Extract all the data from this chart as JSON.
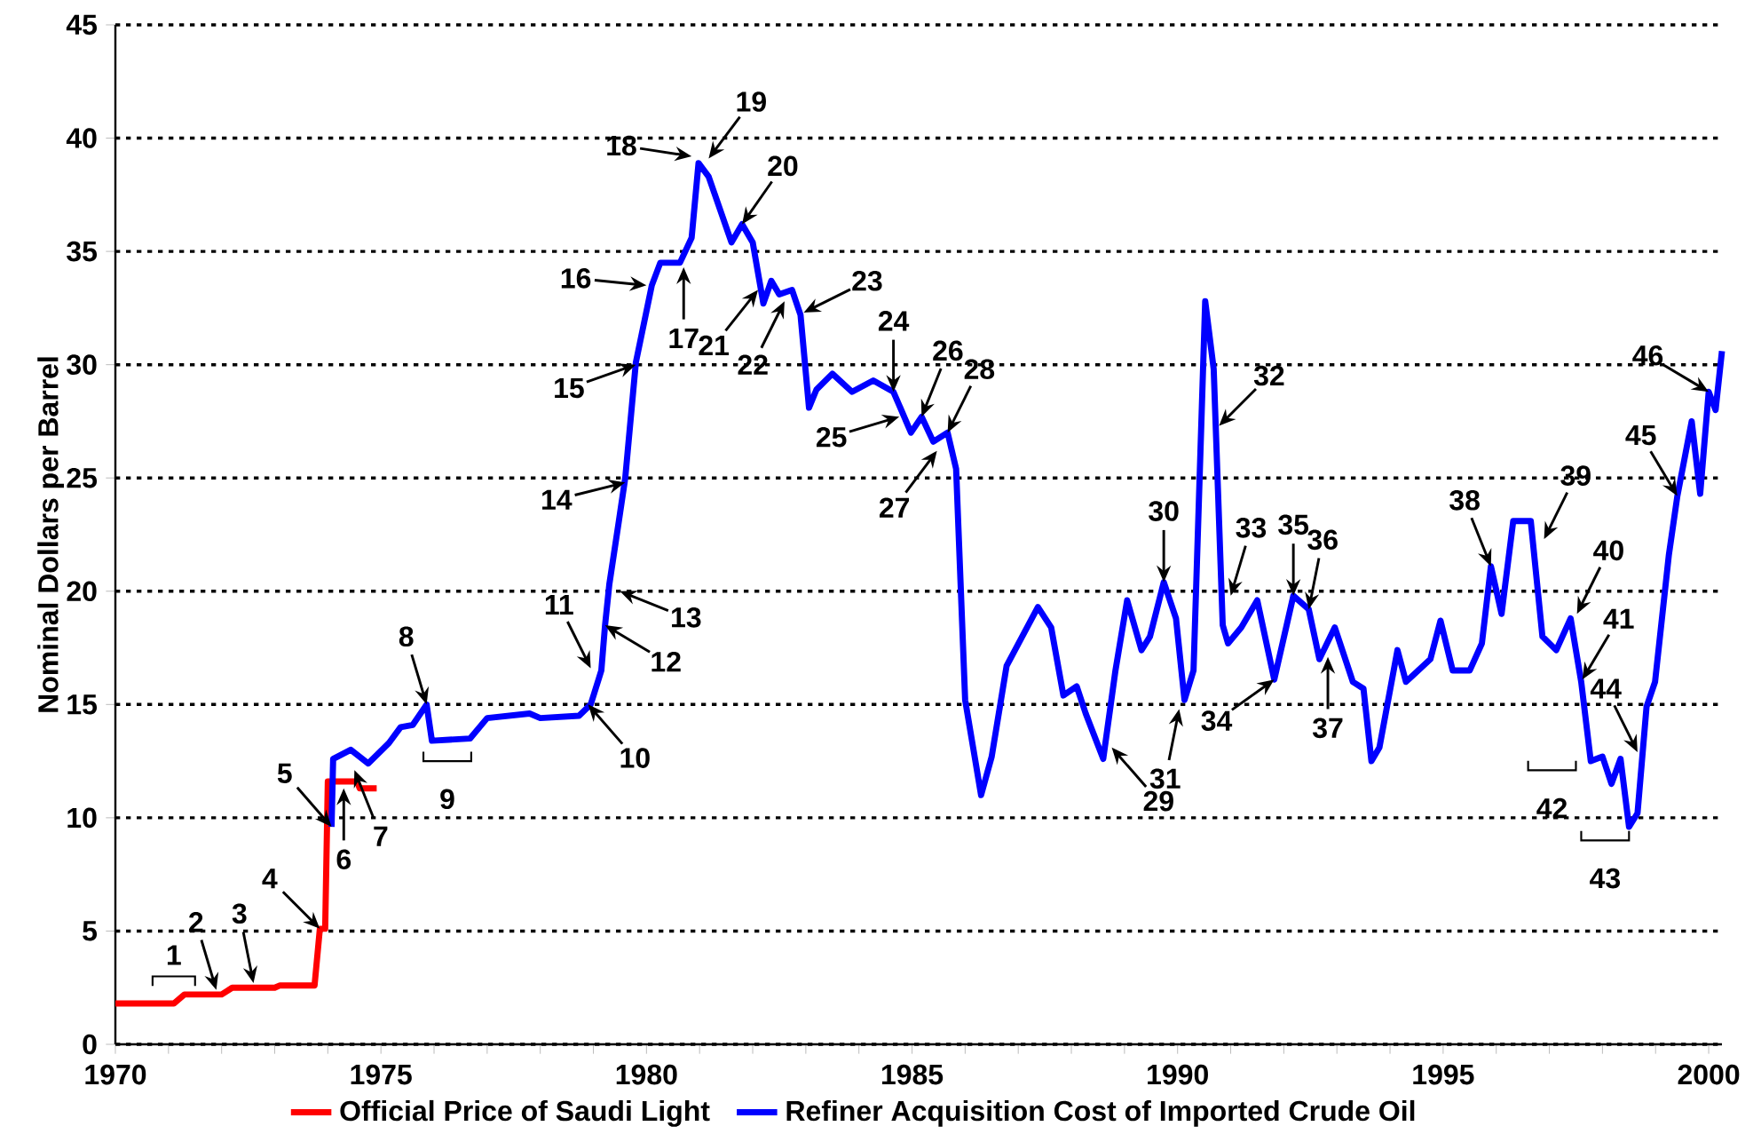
{
  "chart_data": {
    "type": "line",
    "ylabel": "Nominal Dollars per Barrel",
    "xlim": [
      1970,
      2000.25
    ],
    "ylim": [
      0,
      45
    ],
    "xticks": [
      1970,
      {
        "value": 1971,
        "label": null
      },
      {
        "value": 1972,
        "label": null
      },
      {
        "value": 1973,
        "label": null
      },
      {
        "value": 1974,
        "label": null
      },
      1975,
      {
        "value": 1976,
        "label": null
      },
      {
        "value": 1977,
        "label": null
      },
      {
        "value": 1978,
        "label": null
      },
      {
        "value": 1979,
        "label": null
      },
      1980,
      {
        "value": 1981,
        "label": null
      },
      {
        "value": 1982,
        "label": null
      },
      {
        "value": 1983,
        "label": null
      },
      {
        "value": 1984,
        "label": null
      },
      1985,
      {
        "value": 1986,
        "label": null
      },
      {
        "value": 1987,
        "label": null
      },
      {
        "value": 1988,
        "label": null
      },
      {
        "value": 1989,
        "label": null
      },
      1990,
      {
        "value": 1991,
        "label": null
      },
      {
        "value": 1992,
        "label": null
      },
      {
        "value": 1993,
        "label": null
      },
      {
        "value": 1994,
        "label": null
      },
      1995,
      {
        "value": 1996,
        "label": null
      },
      {
        "value": 1997,
        "label": null
      },
      {
        "value": 1998,
        "label": null
      },
      {
        "value": 1999,
        "label": null
      },
      2000
    ],
    "yticks": [
      0,
      5,
      10,
      15,
      20,
      25,
      30,
      35,
      40,
      45
    ],
    "grid": "y",
    "legend": "bottom",
    "series": [
      {
        "name": "Official Price of Saudi Light",
        "color": "#ff0000",
        "x": [
          1970.0,
          1971.1,
          1971.3,
          1972.0,
          1972.2,
          1973.0,
          1973.1,
          1973.75,
          1973.85,
          1973.95,
          1974.0,
          1974.55,
          1974.6,
          1974.92
        ],
        "values": [
          1.8,
          1.8,
          2.2,
          2.2,
          2.5,
          2.5,
          2.6,
          2.6,
          5.1,
          5.1,
          11.6,
          11.6,
          11.3,
          11.3
        ]
      },
      {
        "name": "Refiner Acquisition Cost of Imported Crude Oil",
        "color": "#0000ff",
        "x": [
          1974.07,
          1974.1,
          1974.43,
          1974.76,
          1975.15,
          1975.37,
          1975.6,
          1975.86,
          1975.96,
          1976.68,
          1977.0,
          1977.8,
          1978.0,
          1978.73,
          1978.95,
          1979.15,
          1979.22,
          1979.3,
          1979.48,
          1979.6,
          1979.8,
          1980.1,
          1980.26,
          1980.63,
          1980.85,
          1980.98,
          1981.17,
          1981.6,
          1981.8,
          1982.0,
          1982.2,
          1982.35,
          1982.5,
          1982.74,
          1982.9,
          1983.06,
          1983.2,
          1983.5,
          1983.87,
          1984.27,
          1984.65,
          1984.98,
          1985.18,
          1985.4,
          1985.67,
          1985.83,
          1986.0,
          1986.15,
          1986.3,
          1986.5,
          1986.78,
          1987.37,
          1987.62,
          1987.85,
          1988.1,
          1988.27,
          1988.6,
          1988.83,
          1989.05,
          1989.32,
          1989.48,
          1989.74,
          1989.97,
          1990.13,
          1990.3,
          1990.52,
          1990.68,
          1990.85,
          1990.95,
          1991.2,
          1991.5,
          1991.82,
          1992.18,
          1992.47,
          1992.67,
          1992.96,
          1993.3,
          1993.5,
          1993.65,
          1993.8,
          1994.14,
          1994.3,
          1994.76,
          1994.95,
          1995.18,
          1995.5,
          1995.73,
          1995.9,
          1996.1,
          1996.32,
          1996.65,
          1996.87,
          1997.13,
          1997.4,
          1997.6,
          1997.78,
          1998.0,
          1998.17,
          1998.34,
          1998.5,
          1998.66,
          1998.83,
          1998.99,
          1999.25,
          1999.41,
          1999.68,
          1999.84,
          2000.0,
          2000.13,
          2000.25
        ],
        "values": [
          9.6,
          12.6,
          13.0,
          12.4,
          13.3,
          14.0,
          14.1,
          15.0,
          13.4,
          13.5,
          14.4,
          14.6,
          14.4,
          14.5,
          15.0,
          16.5,
          18.5,
          20.3,
          23.1,
          25.0,
          30.1,
          33.5,
          34.5,
          34.5,
          35.6,
          38.9,
          38.3,
          35.4,
          36.2,
          35.4,
          32.7,
          33.7,
          33.1,
          33.3,
          32.2,
          28.1,
          28.9,
          29.6,
          28.8,
          29.3,
          28.8,
          27.0,
          27.7,
          26.6,
          27.0,
          25.4,
          15.2,
          13.1,
          11.0,
          12.7,
          16.7,
          19.3,
          18.4,
          15.4,
          15.8,
          14.6,
          12.6,
          16.5,
          19.6,
          17.4,
          18.0,
          20.4,
          18.8,
          15.2,
          16.5,
          32.8,
          29.8,
          18.5,
          17.7,
          18.4,
          19.6,
          16.1,
          19.8,
          19.2,
          17.0,
          18.4,
          16.0,
          15.7,
          12.5,
          13.1,
          17.4,
          16.0,
          17.0,
          18.7,
          16.5,
          16.5,
          17.7,
          21.1,
          19.0,
          23.1,
          23.1,
          18.0,
          17.4,
          18.8,
          16.0,
          12.5,
          12.7,
          11.5,
          12.6,
          9.6,
          10.2,
          14.9,
          16.0,
          21.6,
          24.2,
          27.5,
          24.3,
          28.8,
          28.0,
          30.6
        ]
      }
    ],
    "annotations": [
      "1",
      {
        "text": "2",
        "x": 1971.9,
        "y": 2.4
      },
      {
        "text": "3",
        "x": 1972.6,
        "y": 2.7
      },
      {
        "text": "4",
        "x": 1973.85,
        "y": 5.1
      },
      {
        "text": "5",
        "x": 1974.07,
        "y": 9.6
      },
      {
        "text": "6",
        "x": 1974.3,
        "y": 11.3
      },
      {
        "text": "7",
        "x": 1974.5,
        "y": 12.1
      },
      {
        "text": "8",
        "x": 1975.86,
        "y": 15.0
      },
      "9",
      {
        "text": "10",
        "x": 1978.9,
        "y": 15.0
      },
      {
        "text": "11",
        "x": 1978.95,
        "y": 16.6
      },
      {
        "text": "12",
        "x": 1979.22,
        "y": 18.5
      },
      {
        "text": "13",
        "x": 1979.5,
        "y": 20.0
      },
      {
        "text": "14",
        "x": 1979.6,
        "y": 24.8
      },
      {
        "text": "15",
        "x": 1979.8,
        "y": 30.0
      },
      {
        "text": "16",
        "x": 1980.0,
        "y": 33.5
      },
      {
        "text": "17",
        "x": 1980.7,
        "y": 34.3
      },
      {
        "text": "18",
        "x": 1980.85,
        "y": 39.2
      },
      {
        "text": "19",
        "x": 1981.17,
        "y": 39.1
      },
      {
        "text": "20",
        "x": 1981.8,
        "y": 36.2
      },
      {
        "text": "21",
        "x": 1982.1,
        "y": 33.3
      },
      {
        "text": "22",
        "x": 1982.6,
        "y": 32.8
      },
      {
        "text": "23",
        "x": 1982.96,
        "y": 32.3
      },
      {
        "text": "24",
        "x": 1984.65,
        "y": 28.8
      },
      {
        "text": "25",
        "x": 1984.76,
        "y": 27.7
      },
      {
        "text": "26",
        "x": 1985.18,
        "y": 27.7
      },
      {
        "text": "27",
        "x": 1985.47,
        "y": 26.2
      },
      {
        "text": "28",
        "x": 1985.67,
        "y": 27.0
      },
      {
        "text": "29",
        "x": 1988.76,
        "y": 13.1
      },
      {
        "text": "30",
        "x": 1989.74,
        "y": 20.4
      },
      {
        "text": "31",
        "x": 1990.03,
        "y": 14.8
      },
      {
        "text": "32",
        "x": 1990.78,
        "y": 27.3
      },
      {
        "text": "33",
        "x": 1991.0,
        "y": 19.8
      },
      {
        "text": "34",
        "x": 1991.82,
        "y": 16.1
      },
      {
        "text": "35",
        "x": 1992.18,
        "y": 19.8
      },
      {
        "text": "36",
        "x": 1992.47,
        "y": 19.2
      },
      {
        "text": "37",
        "x": 1992.83,
        "y": 17.1
      },
      {
        "text": "38",
        "x": 1995.9,
        "y": 21.1
      },
      {
        "text": "39",
        "x": 1996.9,
        "y": 22.3
      },
      {
        "text": "40",
        "x": 1997.52,
        "y": 19.0
      },
      {
        "text": "41",
        "x": 1997.62,
        "y": 16.1
      },
      "42",
      "43",
      {
        "text": "44",
        "x": 1998.66,
        "y": 12.9
      },
      {
        "text": "45",
        "x": 1999.41,
        "y": 24.2
      },
      {
        "text": "46",
        "x": 2000.0,
        "y": 28.8
      }
    ]
  }
}
